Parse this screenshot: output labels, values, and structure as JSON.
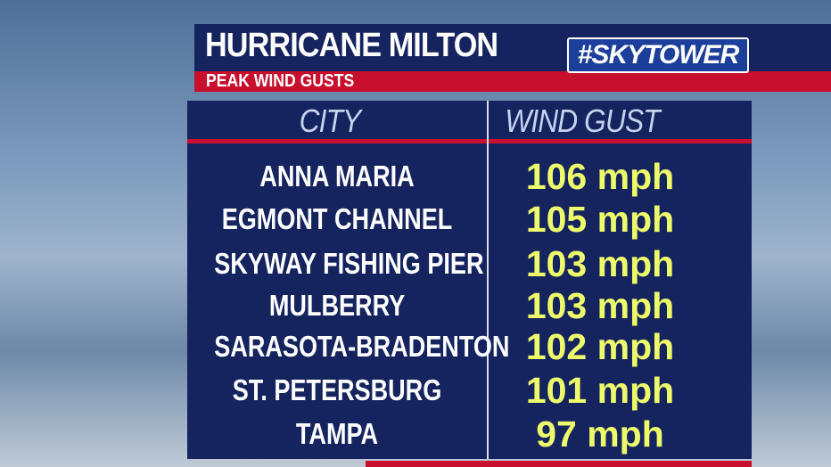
{
  "header": {
    "title": "HURRICANE MILTON",
    "subtitle": "PEAK WIND GUSTS",
    "logo": "#SKYTOWER"
  },
  "table": {
    "columns": [
      "CITY",
      "WIND GUST"
    ],
    "rows": [
      [
        "ANNA MARIA",
        "106 mph"
      ],
      [
        "EGMONT CHANNEL",
        "105 mph"
      ],
      [
        "SKYWAY FISHING PIER",
        "103 mph"
      ],
      [
        "MULBERRY",
        "103 mph"
      ],
      [
        "SARASOTA-BRADENTON",
        "102 mph"
      ],
      [
        "ST. PETERSBURG",
        "101 mph"
      ],
      [
        "TAMPA",
        "97 mph"
      ]
    ]
  }
}
